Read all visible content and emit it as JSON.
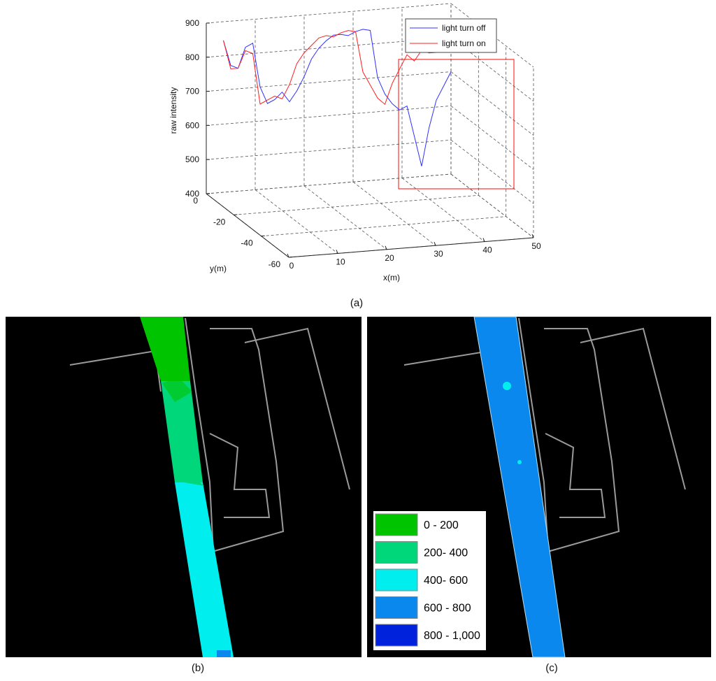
{
  "chart_data": [
    {
      "type": "line3d",
      "xlabel": "x(m)",
      "ylabel": "y(m)",
      "zlabel": "raw intensity",
      "xlim": [
        0,
        50
      ],
      "xticks": [
        0,
        10,
        20,
        30,
        40,
        50
      ],
      "ylim": [
        -60,
        0
      ],
      "yticks": [
        0,
        -20,
        -40,
        -60
      ],
      "zlim": [
        400,
        900
      ],
      "zticks": [
        400,
        500,
        600,
        700,
        800,
        900
      ],
      "grid": true,
      "x": [
        3.5,
        5,
        6.5,
        8,
        9.5,
        11,
        12.5,
        14,
        15.5,
        17,
        18.5,
        20,
        21.5,
        23,
        24.5,
        26,
        27.5,
        29,
        30.5,
        32,
        33.5,
        35,
        36.5,
        38,
        39.5,
        41,
        42.5,
        44,
        45.5,
        47,
        48.5,
        50
      ],
      "series": [
        {
          "name": "light turn off",
          "color": "#3030ff",
          "values": [
            845,
            770,
            760,
            820,
            830,
            700,
            650,
            660,
            680,
            650,
            680,
            720,
            770,
            800,
            820,
            835,
            835,
            830,
            840,
            845,
            840,
            700,
            650,
            620,
            600,
            610,
            520,
            430,
            540,
            620,
            660,
            700
          ]
        },
        {
          "name": "light turn on",
          "color": "#ff2020",
          "values": [
            845,
            760,
            760,
            810,
            800,
            650,
            660,
            670,
            660,
            700,
            760,
            790,
            810,
            830,
            835,
            830,
            840,
            845,
            840,
            720,
            680,
            640,
            620,
            680,
            720,
            760,
            740,
            770,
            760,
            760,
            770,
            770
          ]
        }
      ],
      "legend": "upper right",
      "caption": "(a)"
    }
  ],
  "panels": [
    {
      "caption": "(b)"
    },
    {
      "caption": "(c)"
    }
  ],
  "color_legend": [
    {
      "label": "0 - 200",
      "color": "#00c400"
    },
    {
      "label": "200- 400",
      "color": "#00d67a"
    },
    {
      "label": "400- 600",
      "color": "#00eeee"
    },
    {
      "label": "600 - 800",
      "color": "#0a88ee"
    },
    {
      "label": "800 - 1,000",
      "color": "#0022dd"
    }
  ]
}
